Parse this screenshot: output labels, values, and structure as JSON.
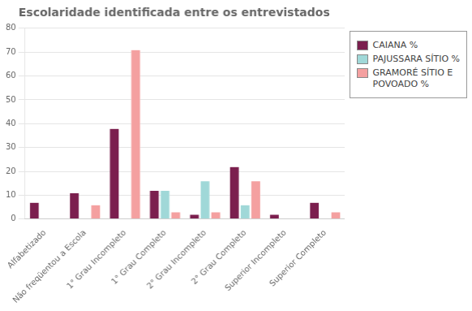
{
  "chart_data": {
    "type": "bar",
    "title": "Escolaridade identificada entre os entrevistados",
    "categories": [
      "Alfabetizado",
      "Não freqüentou a Escola",
      "1° Grau Incompleto",
      "1° Grau Completo",
      "2° Grau Incompleto",
      "2° Grau Completo",
      "Superior Incompleto",
      "Superior Completo"
    ],
    "series": [
      {
        "name": "CAIANA %",
        "color": "#7B1F4E",
        "values": [
          7,
          11,
          38,
          12,
          2,
          22,
          2,
          7
        ]
      },
      {
        "name": "PAJUSSARA SÍTIO %",
        "color": "#A0D8D8",
        "values": [
          0,
          0,
          0,
          12,
          16,
          6,
          0,
          0
        ]
      },
      {
        "name": "GRAMORÉ SÍTIO E\nPOVOADO %",
        "color": "#F4A0A0",
        "values": [
          0,
          6,
          71,
          3,
          3,
          16,
          0,
          3
        ]
      }
    ],
    "ylim": [
      0,
      80
    ],
    "yticks": [
      0,
      10,
      20,
      30,
      40,
      50,
      60,
      70,
      80
    ],
    "grid": true,
    "legend": "upper right"
  }
}
